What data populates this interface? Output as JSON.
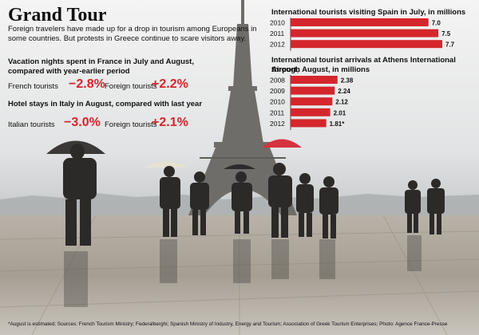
{
  "headline": "Grand Tour",
  "deck": "Foreign travelers have made up for a drop in tourism among Europeans in some countries. But protests in Greece continue to scare visitors away.",
  "france": {
    "title_line1": "Vacation nights spent in France in July and August,",
    "title_line2": "compared with year-earlier period",
    "local_label": "French tourists",
    "local_value": "−2.8%",
    "foreign_label": "Foreign tourists",
    "foreign_value": "+2.2%"
  },
  "italy": {
    "title": "Hotel stays in Italy in August, compared with last year",
    "local_label": "Italian tourists",
    "local_value": "−3.0%",
    "foreign_label": "Foreign tourists",
    "foreign_value": "+2.1%"
  },
  "colors": {
    "accent": "#d4262c",
    "text": "#111111"
  },
  "footnote": "*August is estimated; Sources: French Tourism Ministry; Federalberghi; Spanish Ministry of Industry, Energy and Tourism; Association of Greek Tourism Enterprises; Photo: Agence France-Presse",
  "photo_subject": "Tourists with umbrellas at the Trocadero in front of the Eiffel Tower",
  "chart_data": [
    {
      "type": "bar",
      "orientation": "horizontal",
      "title": "International tourists visiting Spain in July, in millions",
      "categories": [
        "2010",
        "2011",
        "2012"
      ],
      "values": [
        7.0,
        7.5,
        7.7
      ],
      "labels": [
        "7.0",
        "7.5",
        "7.7"
      ],
      "xlim": [
        0,
        7.7
      ]
    },
    {
      "type": "bar",
      "orientation": "horizontal",
      "title_line1": "International tourist arrivals at Athens International Airport,",
      "title_line2": "through August, in millions",
      "categories": [
        "2008",
        "2009",
        "2010",
        "2011",
        "2012"
      ],
      "values": [
        2.38,
        2.24,
        2.12,
        2.01,
        1.81
      ],
      "labels": [
        "2.38",
        "2.24",
        "2.12",
        "2.01",
        "1.81*"
      ],
      "xlim": [
        0,
        7.7
      ]
    }
  ]
}
